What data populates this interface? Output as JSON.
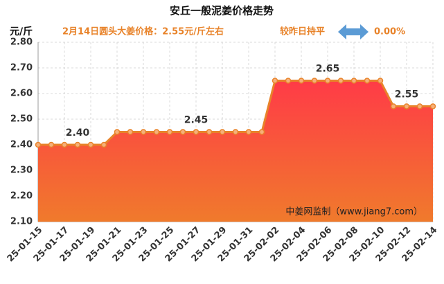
{
  "chart_data": {
    "type": "area",
    "title": "安丘一般泥姜价格走势",
    "y_label": "元/斤",
    "subtitle": "2月14日圆头大姜价格：2.55元/斤左右",
    "change_label": "较昨日持平",
    "change_value": "0.00%",
    "watermark": "中姜网监制（www.jiang7.com）",
    "categories": [
      "25-01-15",
      null,
      "25-01-17",
      null,
      "25-01-19",
      null,
      "25-01-21",
      null,
      "25-01-23",
      null,
      "25-01-25",
      null,
      "25-01-27",
      null,
      "25-01-29",
      null,
      "25-01-31",
      null,
      "25-02-02",
      null,
      "25-02-04",
      null,
      "25-02-06",
      null,
      "25-02-08",
      null,
      "25-02-10",
      null,
      "25-02-12",
      null,
      "25-02-14"
    ],
    "values": [
      2.4,
      2.4,
      2.4,
      2.4,
      2.4,
      2.4,
      2.45,
      2.45,
      2.45,
      2.45,
      2.45,
      2.45,
      2.45,
      2.45,
      2.45,
      2.45,
      2.45,
      2.45,
      2.65,
      2.65,
      2.65,
      2.65,
      2.65,
      2.65,
      2.65,
      2.65,
      2.65,
      2.55,
      2.55,
      2.55,
      2.55
    ],
    "value_labels": [
      null,
      null,
      null,
      "2.40",
      null,
      null,
      null,
      null,
      null,
      null,
      null,
      null,
      "2.45",
      null,
      null,
      null,
      null,
      null,
      null,
      null,
      null,
      null,
      "2.65",
      null,
      null,
      null,
      null,
      null,
      "2.55",
      null,
      null
    ],
    "color": "#e8832a",
    "ylim": [
      2.1,
      2.8
    ],
    "yticks": [
      {
        "value": 2.1,
        "label": "2.10"
      },
      {
        "value": 2.2,
        "label": "2.20"
      },
      {
        "value": 2.3,
        "label": "2.30"
      },
      {
        "value": 2.4,
        "label": "2.40"
      },
      {
        "value": 2.5,
        "label": "2.50"
      },
      {
        "value": 2.6,
        "label": "2.60"
      },
      {
        "value": 2.7,
        "label": "2.70"
      },
      {
        "value": 2.8,
        "label": "2.80"
      }
    ],
    "grid": true
  }
}
